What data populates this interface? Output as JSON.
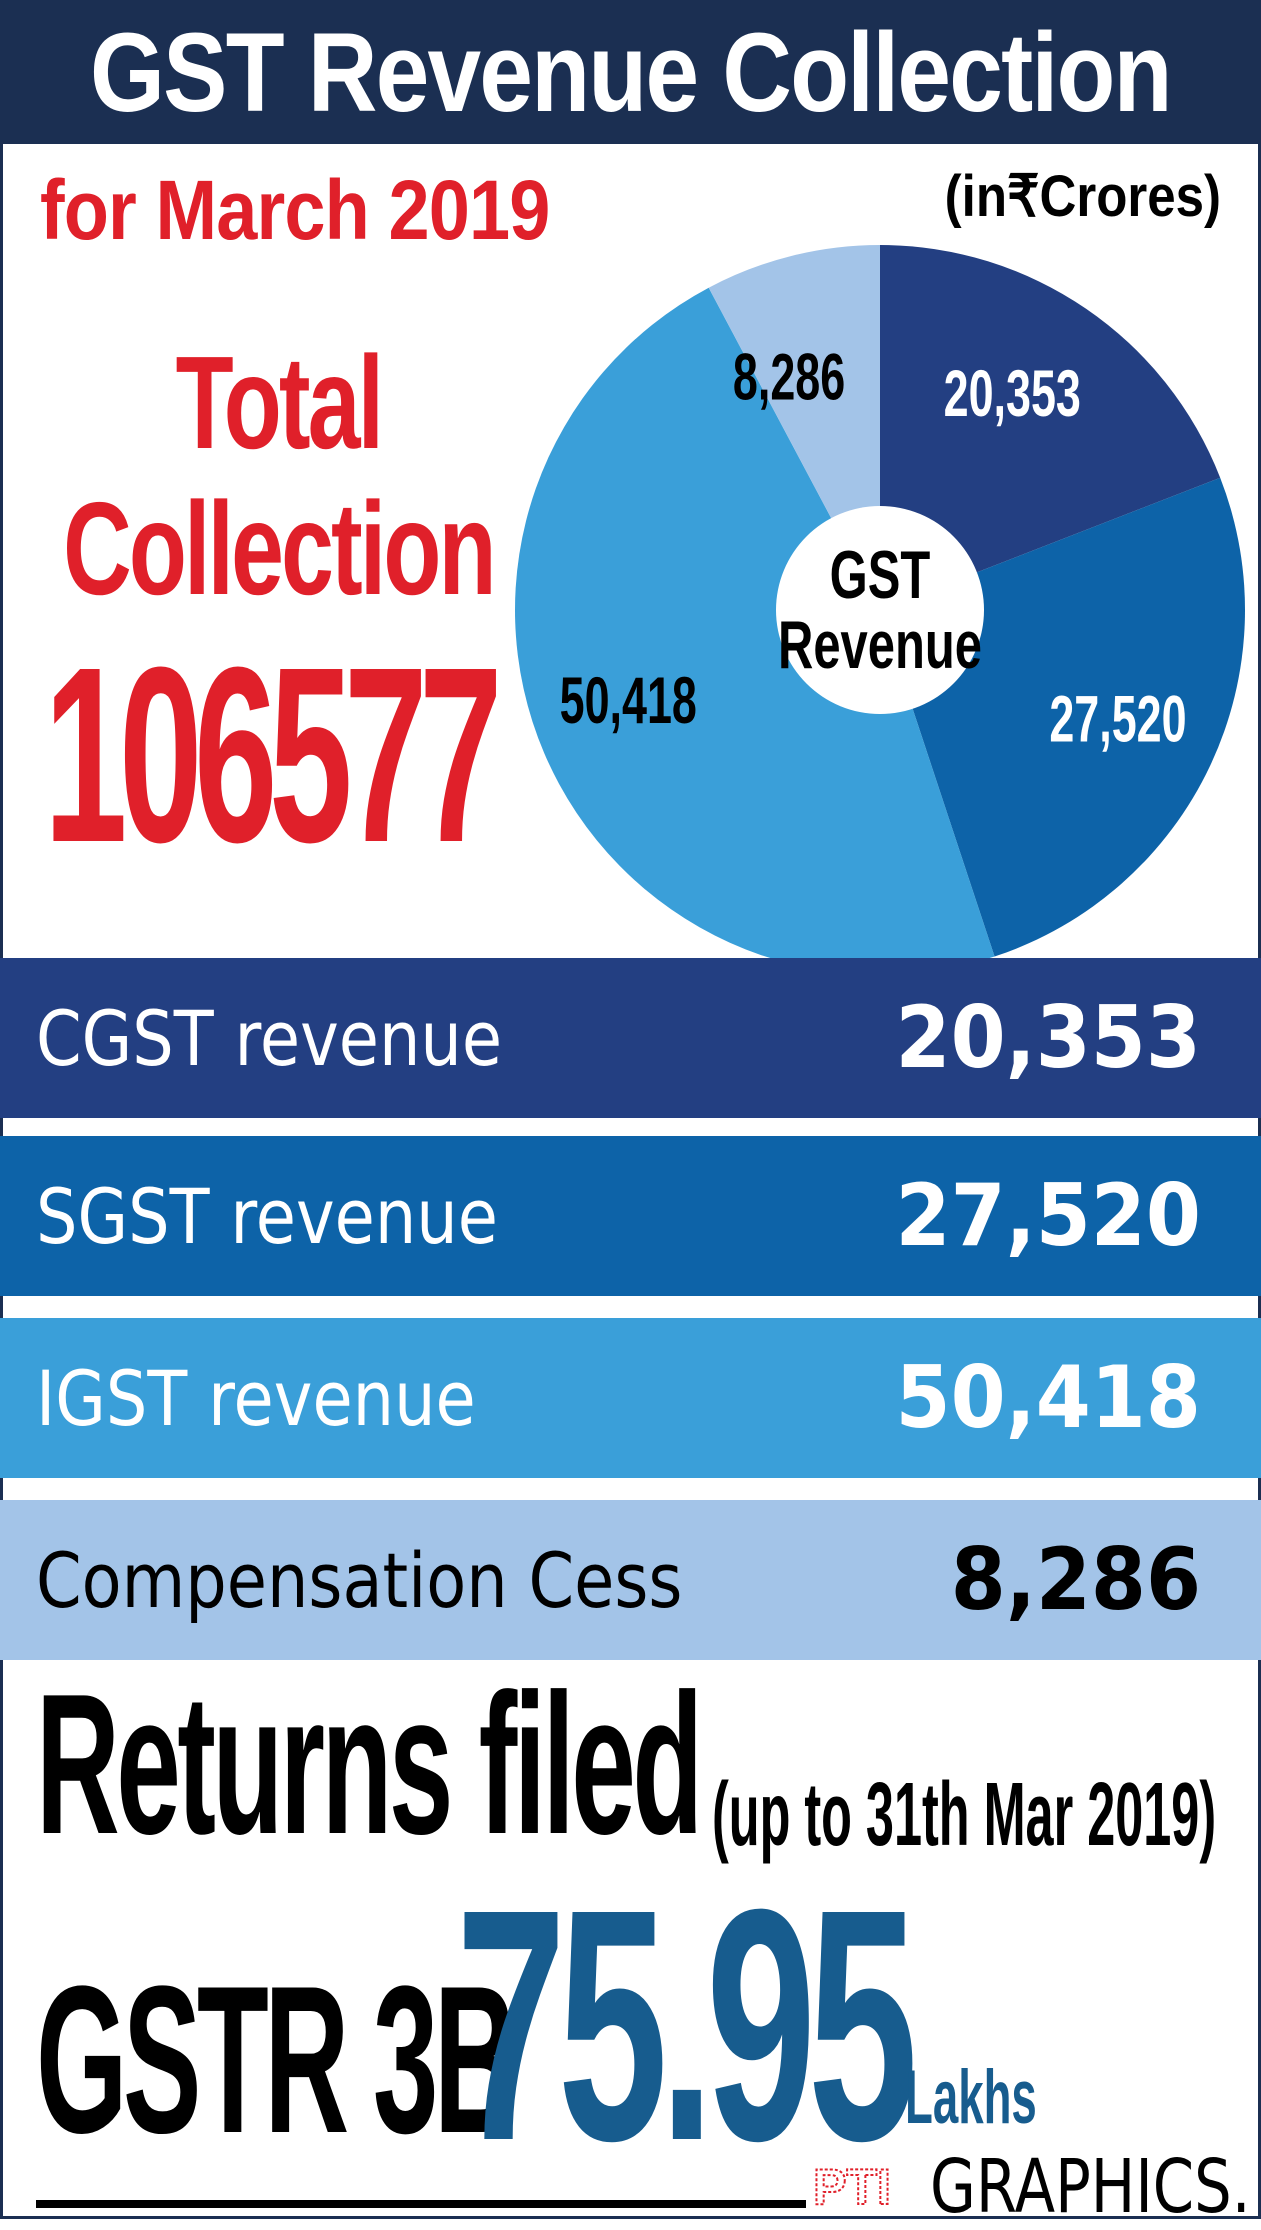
{
  "header": {
    "title": "GST Revenue Collection",
    "subtitle": "for March 2019",
    "units": "(in₹Crores)"
  },
  "total": {
    "label_line1": "Total",
    "label_line2": "Collection",
    "value": "106577"
  },
  "colors": {
    "title_bg": "#1b2f52",
    "accent_red": "#e0202a",
    "cgst": "#233f82",
    "sgst": "#0d63a8",
    "igst": "#3a9fd9",
    "cess": "#a3c4e8",
    "gstr_blue": "#175c8e"
  },
  "chart_data": {
    "type": "pie",
    "center_label_line1": "GST",
    "center_label_line2": "Revenue",
    "slices": [
      {
        "label": "CGST revenue",
        "value": 20353,
        "display": "20,353",
        "color": "#233f82",
        "text_color": "#ffffff"
      },
      {
        "label": "SGST revenue",
        "value": 27520,
        "display": "27,520",
        "color": "#0d63a8",
        "text_color": "#ffffff"
      },
      {
        "label": "IGST revenue",
        "value": 50418,
        "display": "50,418",
        "color": "#3a9fd9",
        "text_color": "#000000"
      },
      {
        "label": "Compensation Cess",
        "value": 8286,
        "display": "8,286",
        "color": "#a3c4e8",
        "text_color": "#000000"
      }
    ]
  },
  "rows": [
    {
      "label": "CGST revenue",
      "value": "20,353"
    },
    {
      "label": "SGST revenue",
      "value": "27,520"
    },
    {
      "label": "IGST revenue",
      "value": "50,418"
    },
    {
      "label": "Compensation Cess",
      "value": "8,286"
    }
  ],
  "returns": {
    "title": "Returns filed",
    "date_note": "(up to 31th Mar 2019)",
    "form_label": "GSTR 3B",
    "form_value": "75.95",
    "form_unit": "Lakhs"
  },
  "footer": {
    "logo_text": "PTI",
    "brand": "GRAPHICS."
  }
}
